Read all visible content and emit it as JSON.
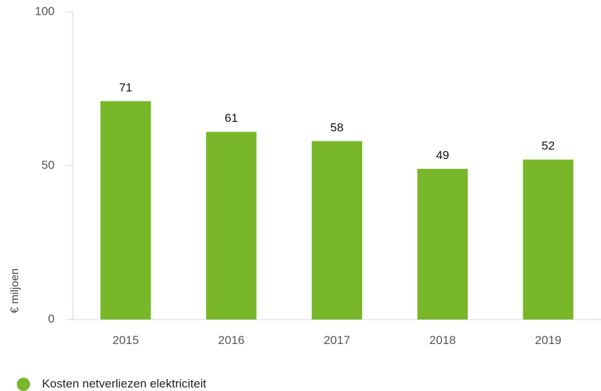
{
  "chart_data": {
    "type": "bar",
    "categories": [
      "2015",
      "2016",
      "2017",
      "2018",
      "2019"
    ],
    "series": [
      {
        "name": "Kosten netverliezen elektriciteit",
        "values": [
          71,
          61,
          58,
          49,
          52
        ],
        "color": "#78b72a"
      }
    ],
    "data_labels": [
      "71",
      "61",
      "58",
      "49",
      "52"
    ],
    "ylabel": "€ miljoen",
    "ylim": [
      0,
      100
    ],
    "yticks": [
      0,
      50,
      100
    ],
    "grid": false,
    "legend_position": "bottom-left"
  }
}
